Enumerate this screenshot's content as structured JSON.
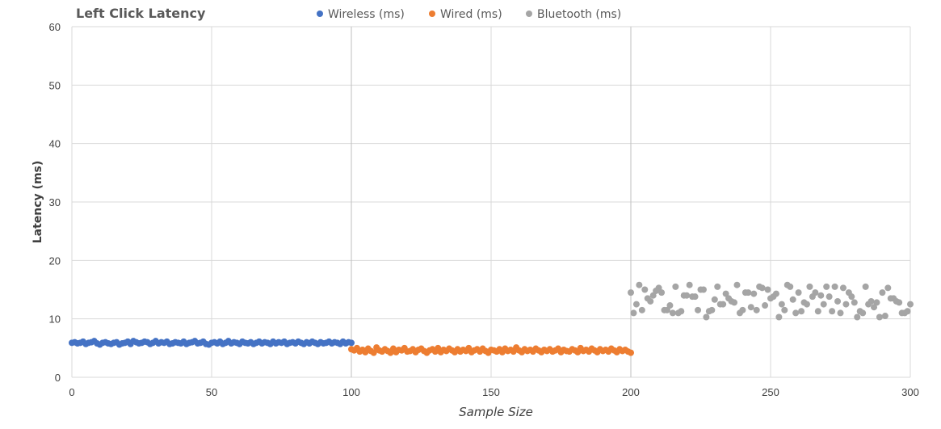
{
  "chart_data": {
    "type": "scatter",
    "title": "Left Click Latency",
    "xlabel": "Sample Size",
    "ylabel": "Latency (ms)",
    "xlim": [
      0,
      300
    ],
    "ylim": [
      0,
      60
    ],
    "x_ticks": [
      0,
      50,
      100,
      150,
      200,
      250,
      300
    ],
    "y_ticks": [
      0,
      10,
      20,
      30,
      40,
      50,
      60
    ],
    "grid": true,
    "legend_position": "top",
    "series": [
      {
        "name": "Wireless (ms)",
        "color": "#4472C4",
        "x": [
          0,
          1,
          2,
          3,
          4,
          5,
          6,
          7,
          8,
          9,
          10,
          11,
          12,
          13,
          14,
          15,
          16,
          17,
          18,
          19,
          20,
          21,
          22,
          23,
          24,
          25,
          26,
          27,
          28,
          29,
          30,
          31,
          32,
          33,
          34,
          35,
          36,
          37,
          38,
          39,
          40,
          41,
          42,
          43,
          44,
          45,
          46,
          47,
          48,
          49,
          50,
          51,
          52,
          53,
          54,
          55,
          56,
          57,
          58,
          59,
          60,
          61,
          62,
          63,
          64,
          65,
          66,
          67,
          68,
          69,
          70,
          71,
          72,
          73,
          74,
          75,
          76,
          77,
          78,
          79,
          80,
          81,
          82,
          83,
          84,
          85,
          86,
          87,
          88,
          89,
          90,
          91,
          92,
          93,
          94,
          95,
          96,
          97,
          98,
          99,
          100
        ],
        "y": [
          5.9,
          6.0,
          5.8,
          5.9,
          6.1,
          5.7,
          5.9,
          6.0,
          6.2,
          5.8,
          5.6,
          5.9,
          6.0,
          5.8,
          5.7,
          5.9,
          6.0,
          5.6,
          5.8,
          5.9,
          6.1,
          5.7,
          6.2,
          6.0,
          5.8,
          5.9,
          6.1,
          6.0,
          5.7,
          5.9,
          6.2,
          5.8,
          6.0,
          5.9,
          6.1,
          5.7,
          5.8,
          6.0,
          5.9,
          5.8,
          6.1,
          5.7,
          5.9,
          6.0,
          6.2,
          5.8,
          5.9,
          6.1,
          5.7,
          5.6,
          5.9,
          6.0,
          5.8,
          6.1,
          5.7,
          5.9,
          6.2,
          5.8,
          6.0,
          5.9,
          5.7,
          6.1,
          5.9,
          5.8,
          6.0,
          5.7,
          5.9,
          6.1,
          5.8,
          6.0,
          5.9,
          5.7,
          6.1,
          5.8,
          6.0,
          5.9,
          6.1,
          5.7,
          5.9,
          6.0,
          5.8,
          6.1,
          5.9,
          5.7,
          6.0,
          5.8,
          6.1,
          5.9,
          5.7,
          6.0,
          5.8,
          5.9,
          6.1,
          5.8,
          6.0,
          5.9,
          5.7,
          6.1,
          5.8,
          6.0,
          5.9
        ]
      },
      {
        "name": "Wired (ms)",
        "color": "#ED7D31",
        "x": [
          100,
          101,
          102,
          103,
          104,
          105,
          106,
          107,
          108,
          109,
          110,
          111,
          112,
          113,
          114,
          115,
          116,
          117,
          118,
          119,
          120,
          121,
          122,
          123,
          124,
          125,
          126,
          127,
          128,
          129,
          130,
          131,
          132,
          133,
          134,
          135,
          136,
          137,
          138,
          139,
          140,
          141,
          142,
          143,
          144,
          145,
          146,
          147,
          148,
          149,
          150,
          151,
          152,
          153,
          154,
          155,
          156,
          157,
          158,
          159,
          160,
          161,
          162,
          163,
          164,
          165,
          166,
          167,
          168,
          169,
          170,
          171,
          172,
          173,
          174,
          175,
          176,
          177,
          178,
          179,
          180,
          181,
          182,
          183,
          184,
          185,
          186,
          187,
          188,
          189,
          190,
          191,
          192,
          193,
          194,
          195,
          196,
          197,
          198,
          199,
          200
        ],
        "y": [
          4.8,
          4.6,
          5.0,
          4.4,
          4.7,
          4.3,
          4.9,
          4.5,
          4.2,
          5.1,
          4.6,
          4.4,
          4.8,
          4.5,
          4.2,
          4.9,
          4.3,
          4.7,
          4.6,
          5.0,
          4.4,
          4.5,
          4.8,
          4.3,
          4.7,
          4.9,
          4.5,
          4.2,
          4.6,
          4.8,
          4.4,
          5.0,
          4.3,
          4.7,
          4.5,
          4.9,
          4.6,
          4.3,
          4.8,
          4.4,
          4.7,
          4.5,
          5.0,
          4.3,
          4.6,
          4.8,
          4.4,
          4.9,
          4.5,
          4.2,
          4.7,
          4.6,
          4.4,
          4.8,
          4.3,
          4.9,
          4.5,
          4.7,
          4.4,
          5.1,
          4.6,
          4.3,
          4.8,
          4.5,
          4.7,
          4.4,
          4.9,
          4.6,
          4.3,
          4.7,
          4.5,
          4.8,
          4.4,
          4.6,
          4.9,
          4.3,
          4.7,
          4.5,
          4.4,
          4.8,
          4.6,
          4.3,
          5.0,
          4.5,
          4.7,
          4.4,
          4.9,
          4.6,
          4.3,
          4.8,
          4.5,
          4.7,
          4.4,
          4.9,
          4.6,
          4.3,
          4.8,
          4.5,
          4.7,
          4.4,
          4.2
        ]
      },
      {
        "name": "Bluetooth (ms)",
        "color": "#A5A5A5",
        "x": [
          200,
          202,
          204,
          206,
          208,
          210,
          212,
          214,
          216,
          218,
          220,
          222,
          224,
          226,
          228,
          230,
          232,
          234,
          236,
          238,
          240,
          242,
          244,
          246,
          248,
          250,
          252,
          254,
          256,
          258,
          260,
          262,
          264,
          266,
          268,
          270,
          272,
          274,
          276,
          278,
          280,
          282,
          284,
          286,
          288,
          290,
          292,
          294,
          296,
          298,
          300,
          201,
          203,
          205,
          207,
          209,
          211,
          213,
          215,
          217,
          219,
          221,
          223,
          225,
          227,
          229,
          231,
          233,
          235,
          237,
          239,
          241,
          243,
          245,
          247,
          249,
          251,
          253,
          255,
          257,
          259,
          261,
          263,
          265,
          267,
          269,
          271,
          273,
          275,
          277,
          279,
          281,
          283,
          285,
          287,
          289,
          291,
          293,
          295,
          297,
          299
        ],
        "y": [
          14.5,
          12.5,
          11.5,
          13.5,
          14.0,
          15.3,
          11.5,
          12.3,
          15.5,
          11.3,
          14.0,
          13.8,
          11.5,
          15.0,
          11.3,
          13.3,
          12.5,
          14.3,
          13.0,
          15.8,
          11.5,
          14.5,
          14.3,
          15.5,
          12.3,
          13.5,
          14.3,
          12.5,
          15.8,
          13.3,
          14.5,
          12.8,
          15.5,
          14.5,
          14.0,
          15.5,
          11.3,
          13.0,
          15.3,
          14.5,
          12.8,
          11.3,
          15.5,
          13.0,
          12.8,
          14.5,
          15.3,
          13.5,
          12.8,
          11.0,
          12.5,
          11.0,
          15.8,
          15.0,
          13.0,
          14.8,
          14.5,
          11.5,
          11.0,
          11.0,
          14.0,
          15.8,
          13.8,
          15.0,
          10.3,
          11.5,
          15.5,
          12.5,
          13.5,
          12.8,
          11.0,
          14.5,
          12.0,
          11.5,
          15.3,
          15.0,
          13.8,
          10.3,
          11.5,
          15.5,
          11.0,
          11.3,
          12.5,
          13.8,
          11.3,
          12.5,
          13.8,
          15.5,
          11.0,
          12.5,
          13.8,
          10.3,
          11.0,
          12.5,
          12.0,
          10.3,
          10.5,
          13.5,
          13.0,
          11.0,
          11.3
        ]
      }
    ]
  }
}
